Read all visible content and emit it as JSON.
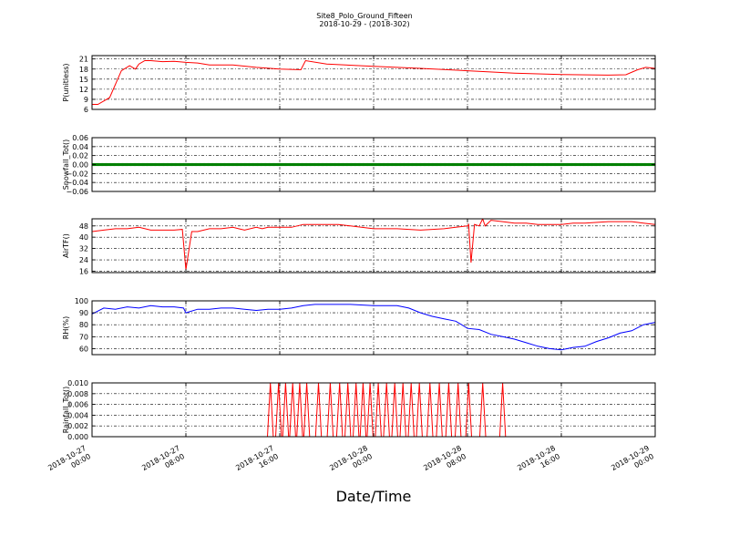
{
  "figure": {
    "title_line1": "Site8_Polo_Ground_Fifteen",
    "title_line2": "2018-10-29 - (2018-302)",
    "xlabel": "Date/Time"
  },
  "x_ticks": [
    {
      "t": 0,
      "line1": "2018-10-27",
      "line2": "00:00"
    },
    {
      "t": 8,
      "line1": "2018-10-27",
      "line2": "08:00"
    },
    {
      "t": 16,
      "line1": "2018-10-27",
      "line2": "16:00"
    },
    {
      "t": 24,
      "line1": "2018-10-28",
      "line2": "00:00"
    },
    {
      "t": 32,
      "line1": "2018-10-28",
      "line2": "08:00"
    },
    {
      "t": 40,
      "line1": "2018-10-28",
      "line2": "16:00"
    },
    {
      "t": 48,
      "line1": "2018-10-29",
      "line2": "00:00"
    }
  ],
  "chart_data": [
    {
      "type": "line",
      "ylabel": "P(unitless)",
      "ylim": [
        6,
        22
      ],
      "yticks": [
        "6",
        "9",
        "12",
        "15",
        "18",
        "21"
      ],
      "ytick_values": [
        6,
        9,
        12,
        15,
        18,
        21
      ],
      "color": "#ff0000",
      "x_hours": [
        0,
        0.5,
        1.5,
        2.5,
        3.2,
        3.7,
        4,
        4.5,
        5,
        6,
        7,
        8,
        9,
        10,
        12,
        14,
        16,
        17.8,
        18.2,
        20,
        24,
        28,
        32,
        36,
        40,
        44,
        45.5,
        46.5,
        47.2,
        48
      ],
      "values": [
        7.5,
        7.5,
        9.5,
        17.5,
        19,
        18,
        19.5,
        20.5,
        20.5,
        20.2,
        20.3,
        20,
        19.8,
        19.2,
        19.2,
        18.5,
        18,
        17.8,
        20.5,
        19.5,
        18.8,
        18.2,
        17.5,
        16.8,
        16.4,
        16.2,
        16.3,
        17.8,
        18.5,
        18.2
      ]
    },
    {
      "type": "scatter",
      "ylabel": "Snowfall_Tot()",
      "ylim": [
        -0.06,
        0.06
      ],
      "yticks": [
        "−0.06",
        "−0.04",
        "−0.02",
        "0.00",
        "0.02",
        "0.04",
        "0.06"
      ],
      "ytick_values": [
        -0.06,
        -0.04,
        -0.02,
        0,
        0.02,
        0.04,
        0.06
      ],
      "color": "#008000",
      "x_range_hours": [
        0,
        48
      ],
      "sample_step_hours": 0.1,
      "constant_value": 0.0
    },
    {
      "type": "line",
      "ylabel": "AirTF()",
      "ylim": [
        15,
        53
      ],
      "yticks": [
        "16",
        "24",
        "32",
        "40",
        "48"
      ],
      "ytick_values": [
        16,
        24,
        32,
        40,
        48
      ],
      "color": "#ff0000",
      "x_hours": [
        0,
        1,
        2,
        3,
        4,
        5,
        6,
        7,
        7.7,
        7.85,
        8,
        8.5,
        9,
        10,
        11,
        12,
        12.5,
        13,
        14,
        14.5,
        15,
        16,
        17,
        18,
        19,
        20,
        21,
        22,
        24,
        26,
        28,
        30,
        31,
        32,
        32.1,
        32.3,
        32.6,
        33,
        33.3,
        33.5,
        34,
        35,
        36,
        37,
        38,
        39,
        40,
        41,
        42,
        44,
        46,
        47,
        48
      ],
      "values": [
        44,
        45,
        46,
        46,
        47,
        45,
        45,
        45,
        45.5,
        31,
        17,
        44,
        44,
        46,
        46,
        47,
        46,
        45,
        47,
        46,
        47,
        47,
        47,
        49,
        49,
        49,
        49,
        48,
        46,
        46,
        45,
        46,
        47,
        48,
        49,
        22,
        49,
        48,
        53,
        48,
        52,
        51,
        50,
        50,
        49,
        49,
        49,
        50,
        50,
        51,
        51,
        50,
        49
      ]
    },
    {
      "type": "line",
      "ylabel": "RH(%)",
      "ylim": [
        55,
        100
      ],
      "yticks": [
        "60",
        "70",
        "80",
        "90",
        "100"
      ],
      "ytick_values": [
        60,
        70,
        80,
        90,
        100
      ],
      "color": "#0000ff",
      "x_hours": [
        0,
        1,
        2,
        3,
        4,
        5,
        6,
        7,
        7.8,
        8,
        9,
        10,
        11,
        12,
        13,
        14,
        15,
        16,
        17,
        18,
        19,
        20,
        22,
        24,
        26,
        27,
        28,
        29,
        30,
        31,
        31.5,
        32,
        33,
        34,
        35,
        36,
        37,
        38,
        39,
        40,
        41,
        42,
        43,
        44,
        45,
        46,
        47,
        48
      ],
      "values": [
        89,
        94,
        93,
        95,
        94,
        96,
        95,
        95,
        94,
        90,
        93,
        93,
        94,
        94,
        93,
        92,
        93,
        93,
        94,
        96,
        97,
        97,
        97,
        96,
        96,
        94,
        90,
        87,
        85,
        83,
        80,
        77,
        76,
        72,
        70,
        68,
        65,
        62,
        60,
        59,
        61,
        62,
        66,
        69,
        73,
        75,
        80,
        82
      ]
    },
    {
      "type": "line",
      "ylabel": "Rainfall_Tot()",
      "ylim": [
        0,
        0.01
      ],
      "yticks": [
        "0.000",
        "0.002",
        "0.004",
        "0.006",
        "0.008",
        "0.010"
      ],
      "ytick_values": [
        0,
        0.002,
        0.004,
        0.006,
        0.008,
        0.01
      ],
      "color": "#ff0000",
      "baseline_until_hours": 15,
      "spikes": [
        {
          "x": 15.2,
          "v": 0.01
        },
        {
          "x": 15.9,
          "v": 0.01
        },
        {
          "x": 16.5,
          "v": 0.01
        },
        {
          "x": 17.1,
          "v": 0.01
        },
        {
          "x": 17.7,
          "v": 0.01
        },
        {
          "x": 18.3,
          "v": 0.01
        },
        {
          "x": 19.3,
          "v": 0.01
        },
        {
          "x": 20.3,
          "v": 0.01
        },
        {
          "x": 21.1,
          "v": 0.01
        },
        {
          "x": 21.8,
          "v": 0.01
        },
        {
          "x": 22.5,
          "v": 0.01
        },
        {
          "x": 23.1,
          "v": 0.01
        },
        {
          "x": 23.7,
          "v": 0.01
        },
        {
          "x": 24.4,
          "v": 0.01
        },
        {
          "x": 25.1,
          "v": 0.01
        },
        {
          "x": 25.8,
          "v": 0.01
        },
        {
          "x": 26.5,
          "v": 0.01
        },
        {
          "x": 27.2,
          "v": 0.01
        },
        {
          "x": 27.9,
          "v": 0.01
        },
        {
          "x": 28.8,
          "v": 0.01
        },
        {
          "x": 29.6,
          "v": 0.01
        },
        {
          "x": 30.4,
          "v": 0.01
        },
        {
          "x": 31.2,
          "v": 0.01
        },
        {
          "x": 32.1,
          "v": 0.01
        },
        {
          "x": 33.3,
          "v": 0.01
        },
        {
          "x": 35.0,
          "v": 0.01
        }
      ],
      "zero_after_hours": 35.5
    }
  ]
}
